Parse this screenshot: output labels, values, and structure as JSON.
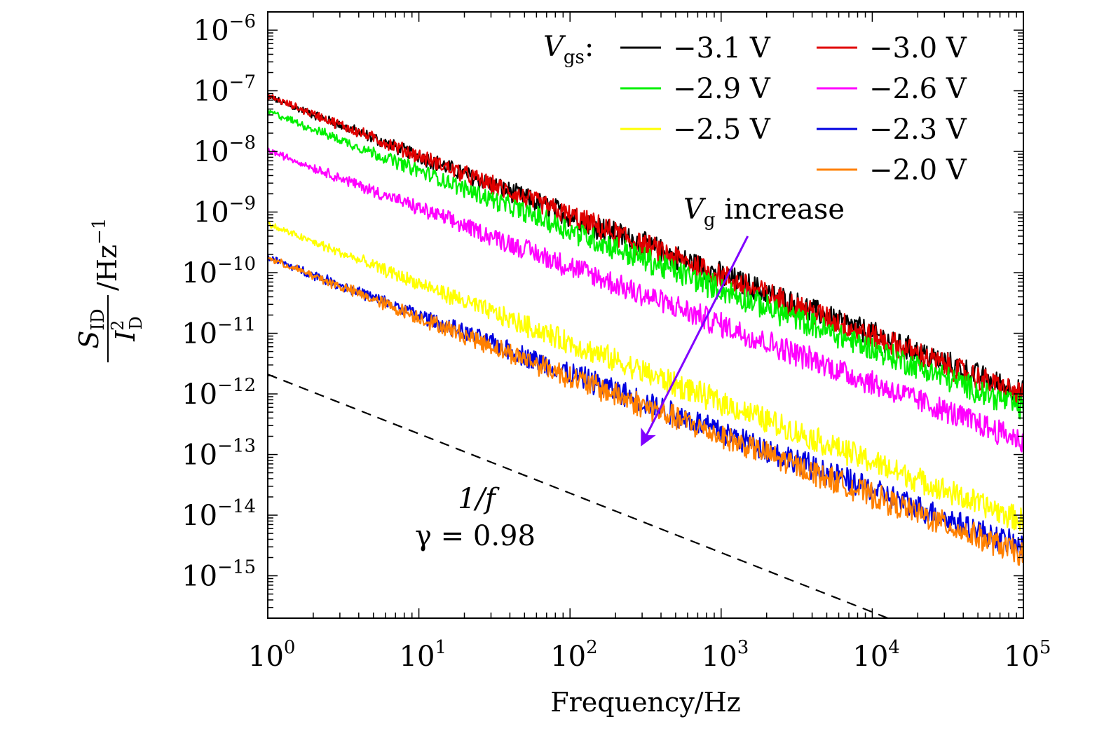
{
  "chart_data": {
    "type": "line",
    "scale": {
      "x": "log",
      "y": "log"
    },
    "xlim": [
      1,
      100000
    ],
    "ylim": [
      2e-16,
      2e-06
    ],
    "x_ticks": [
      {
        "base": "10",
        "exp": "0"
      },
      {
        "base": "10",
        "exp": "1"
      },
      {
        "base": "10",
        "exp": "2"
      },
      {
        "base": "10",
        "exp": "3"
      },
      {
        "base": "10",
        "exp": "4"
      },
      {
        "base": "10",
        "exp": "5"
      }
    ],
    "y_ticks": [
      {
        "base": "10",
        "exp": "−6",
        "value": 1e-06
      },
      {
        "base": "10",
        "exp": "−7",
        "value": 1e-07
      },
      {
        "base": "10",
        "exp": "−8",
        "value": 1e-08
      },
      {
        "base": "10",
        "exp": "−9",
        "value": 1e-09
      },
      {
        "base": "10",
        "exp": "−10",
        "value": 1e-10
      },
      {
        "base": "10",
        "exp": "−11",
        "value": 1e-11
      },
      {
        "base": "10",
        "exp": "−12",
        "value": 1e-12
      },
      {
        "base": "10",
        "exp": "−13",
        "value": 1e-13
      },
      {
        "base": "10",
        "exp": "−14",
        "value": 1e-14
      },
      {
        "base": "10",
        "exp": "−15",
        "value": 1e-15
      }
    ],
    "xlabel": "Frequency/Hz",
    "ylabel": {
      "numerator_main": "S",
      "numerator_sub": "ID",
      "denominator_main": "I",
      "denominator_sup": "2",
      "denominator_sub": "D",
      "unit": "/Hz",
      "unit_exp": "−1"
    },
    "legend_title": {
      "main": "V",
      "sub": "gs",
      "suffix": ":"
    },
    "series": [
      {
        "name": "−3.1 V",
        "color": "#000000",
        "amplitude": 8e-08,
        "slope": 0.98
      },
      {
        "name": "−3.0 V",
        "color": "#e00000",
        "amplitude": 8.2e-08,
        "slope": 0.99
      },
      {
        "name": "−2.9 V",
        "color": "#00f000",
        "amplitude": 4.6e-08,
        "slope": 0.98
      },
      {
        "name": "−2.6 V",
        "color": "#ff00ff",
        "amplitude": 1.05e-08,
        "slope": 0.96
      },
      {
        "name": "−2.5 V",
        "color": "#ffff00",
        "amplitude": 6.3e-10,
        "slope": 0.98
      },
      {
        "name": "−2.3 V",
        "color": "#0000e0",
        "amplitude": 1.8e-10,
        "slope": 0.96
      },
      {
        "name": "−2.0 V",
        "color": "#ff8000",
        "amplitude": 1.75e-10,
        "slope": 0.98
      }
    ],
    "reference_line": {
      "label": "1/f",
      "gamma_text": "γ = 0.98",
      "amplitude": 2.1e-12,
      "slope": 0.98,
      "style": "dashed"
    },
    "annotation": {
      "main": "V",
      "sub": "g",
      "text": " increase",
      "arrow_color": "#8000ff",
      "arrow_from": [
        1500,
        4e-10
      ],
      "arrow_to": [
        300,
        1.5e-13
      ]
    }
  }
}
